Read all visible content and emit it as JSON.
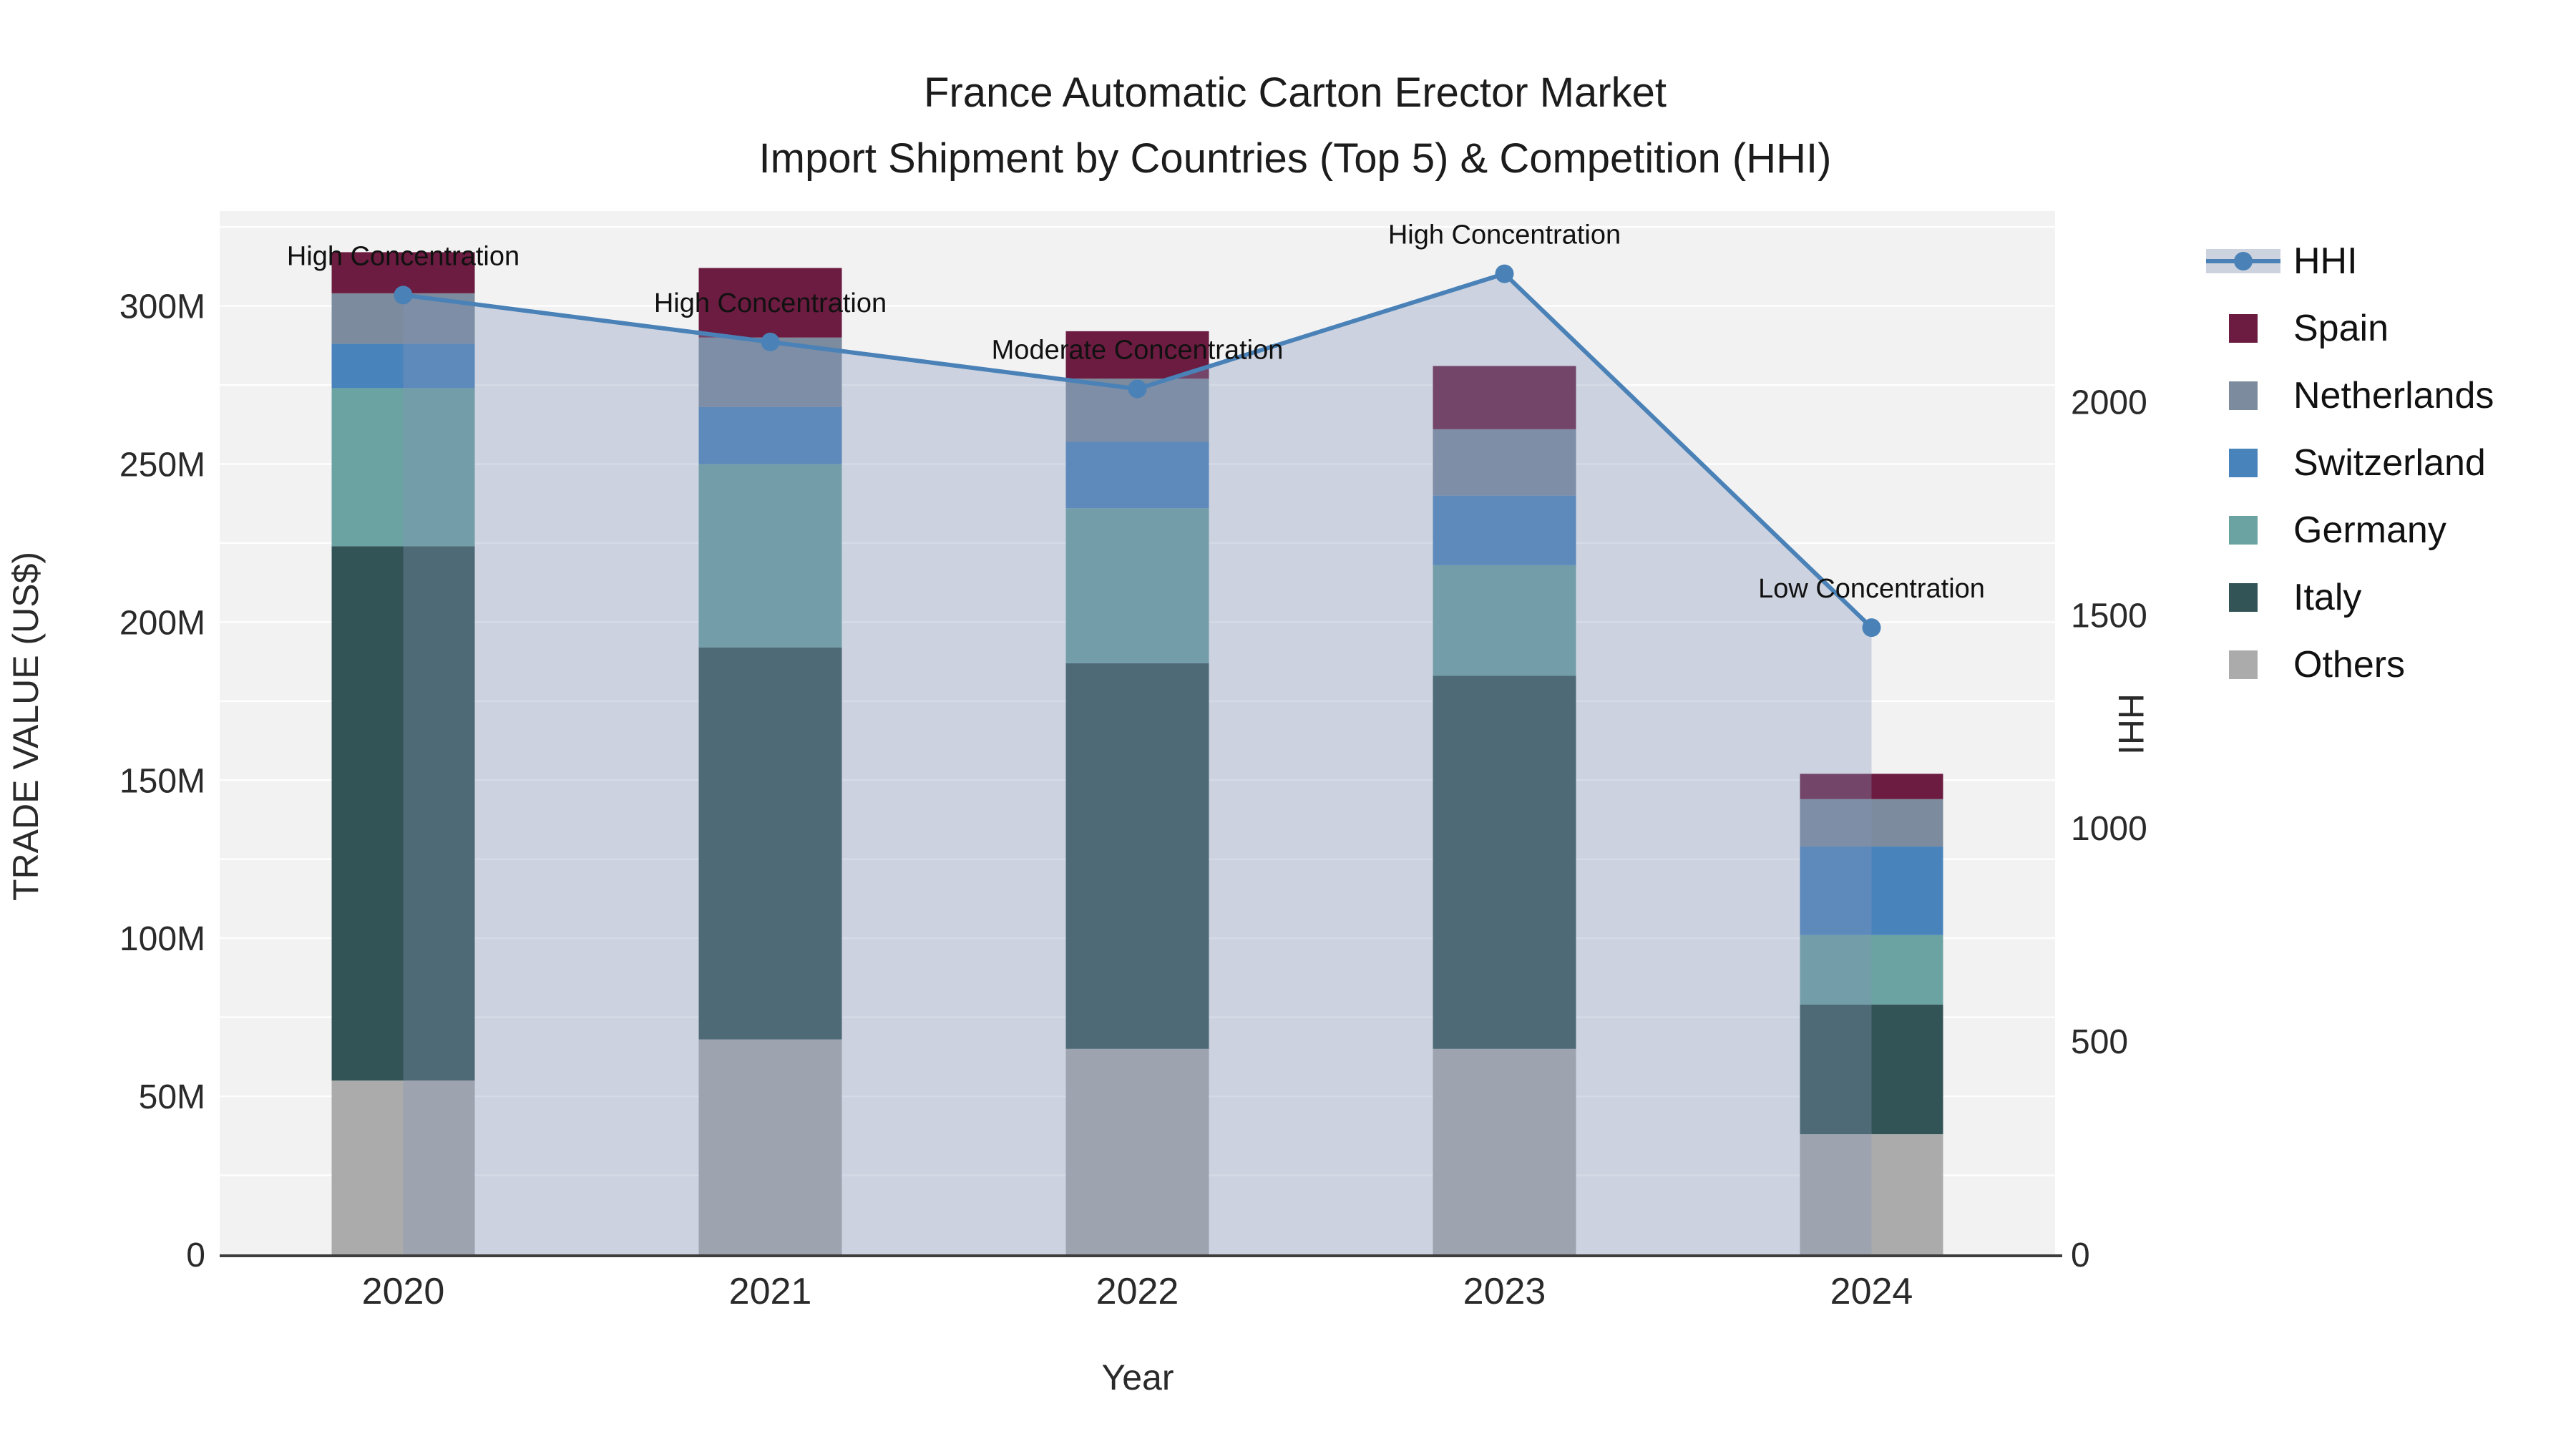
{
  "title": {
    "line1": "France Automatic Carton Erector Market",
    "line2": "Import Shipment by Countries (Top 5) & Competition (HHI)"
  },
  "axes": {
    "x_title": "Year",
    "y_left_title": "TRADE VALUE (US$)",
    "y_right_title": "HHI",
    "y_left_tick_labels": [
      "0",
      "50M",
      "100M",
      "150M",
      "200M",
      "250M",
      "300M"
    ],
    "y_left_tick_values": [
      0,
      50,
      100,
      150,
      200,
      250,
      300
    ],
    "y_left_max": 330,
    "y_left_grid_step": 25,
    "y_right_tick_labels": [
      "0",
      "500",
      "1000",
      "1500",
      "2000"
    ],
    "y_right_tick_values": [
      0,
      500,
      1000,
      1500,
      2000
    ],
    "y_right_max": 2447
  },
  "chart_data": {
    "type": "combo: stacked bar (trade value, left axis) + line with area fill (HHI, right axis)",
    "unit": "million US$",
    "categories": [
      "2020",
      "2021",
      "2022",
      "2023",
      "2024"
    ],
    "stack_order_bottom_to_top": [
      "Others",
      "Italy",
      "Germany",
      "Switzerland",
      "Netherlands",
      "Spain"
    ],
    "series": [
      {
        "name": "Spain",
        "color": "#6B1C40",
        "values": [
          13,
          22,
          15,
          20,
          8
        ]
      },
      {
        "name": "Netherlands",
        "color": "#7C8B9D",
        "values": [
          16,
          22,
          20,
          21,
          15
        ]
      },
      {
        "name": "Switzerland",
        "color": "#4983BC",
        "values": [
          14,
          18,
          21,
          22,
          28
        ]
      },
      {
        "name": "Germany",
        "color": "#6BA3A2",
        "values": [
          50,
          58,
          49,
          35,
          22
        ]
      },
      {
        "name": "Italy",
        "color": "#325456",
        "values": [
          169,
          124,
          122,
          118,
          41
        ]
      },
      {
        "name": "Others",
        "color": "#ABABAB",
        "values": [
          55,
          68,
          65,
          65,
          38
        ]
      }
    ],
    "line_series": {
      "name": "HHI",
      "color": "#4A82B8",
      "area_fill": "rgba(131,149,186,0.34)",
      "values": [
        2250,
        2140,
        2030,
        2300,
        1470
      ]
    },
    "annotations": [
      {
        "category": "2020",
        "text": "High Concentration"
      },
      {
        "category": "2021",
        "text": "High Concentration"
      },
      {
        "category": "2022",
        "text": "Moderate Concentration"
      },
      {
        "category": "2023",
        "text": "High Concentration"
      },
      {
        "category": "2024",
        "text": "Low Concentration"
      }
    ],
    "plot_bg_color": "#F2F2F3",
    "gridline_color": "#FFFFFF",
    "axis_line_color": "#3D3D3D",
    "legend_position": "right"
  },
  "legend": {
    "items": [
      {
        "label": "HHI",
        "type": "line-with-band",
        "color": "#4A82B8"
      },
      {
        "label": "Spain",
        "type": "swatch",
        "color": "#6B1C40"
      },
      {
        "label": "Netherlands",
        "type": "swatch",
        "color": "#7C8B9D"
      },
      {
        "label": "Switzerland",
        "type": "swatch",
        "color": "#4983BC"
      },
      {
        "label": "Germany",
        "type": "swatch",
        "color": "#6BA3A2"
      },
      {
        "label": "Italy",
        "type": "swatch",
        "color": "#325456"
      },
      {
        "label": "Others",
        "type": "swatch",
        "color": "#ABABAB"
      }
    ]
  }
}
